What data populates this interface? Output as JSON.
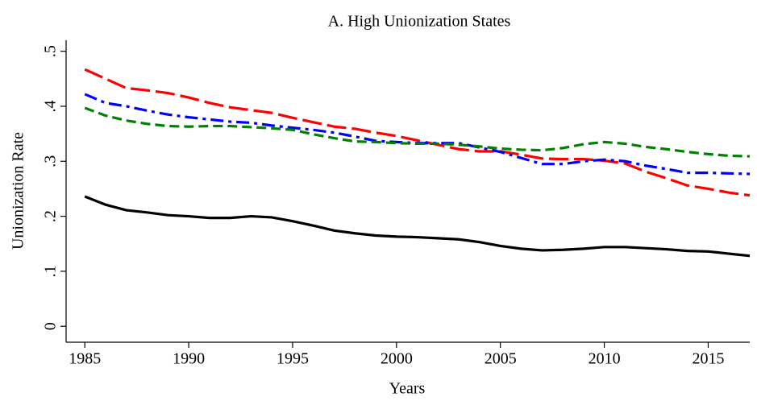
{
  "chart_data": {
    "type": "line",
    "title": "A. High Unionization States",
    "xlabel": "Years",
    "ylabel": "Unionization Rate",
    "x": [
      1985,
      1986,
      1987,
      1988,
      1989,
      1990,
      1991,
      1992,
      1993,
      1994,
      1995,
      1996,
      1997,
      1998,
      1999,
      2000,
      2001,
      2002,
      2003,
      2004,
      2005,
      2006,
      2007,
      2008,
      2009,
      2010,
      2011,
      2012,
      2013,
      2014,
      2015,
      2016,
      2017
    ],
    "series": [
      {
        "color": "#000000",
        "line_style": "solid",
        "values": [
          0.236,
          0.221,
          0.211,
          0.207,
          0.202,
          0.2,
          0.197,
          0.197,
          0.2,
          0.198,
          0.191,
          0.183,
          0.174,
          0.169,
          0.165,
          0.163,
          0.162,
          0.16,
          0.158,
          0.153,
          0.146,
          0.141,
          0.138,
          0.139,
          0.141,
          0.144,
          0.144,
          0.142,
          0.14,
          0.137,
          0.136,
          0.132,
          0.128
        ]
      },
      {
        "color": "#ff0000",
        "line_style": "longdash",
        "values": [
          0.467,
          0.45,
          0.433,
          0.429,
          0.424,
          0.416,
          0.406,
          0.398,
          0.393,
          0.388,
          0.379,
          0.371,
          0.363,
          0.359,
          0.352,
          0.346,
          0.338,
          0.33,
          0.322,
          0.318,
          0.318,
          0.312,
          0.305,
          0.304,
          0.304,
          0.301,
          0.296,
          0.281,
          0.269,
          0.256,
          0.25,
          0.243,
          0.238
        ]
      },
      {
        "color": "#0000ff",
        "line_style": "dashdot",
        "values": [
          0.422,
          0.406,
          0.4,
          0.392,
          0.385,
          0.38,
          0.376,
          0.372,
          0.37,
          0.365,
          0.361,
          0.357,
          0.352,
          0.345,
          0.337,
          0.335,
          0.333,
          0.333,
          0.333,
          0.325,
          0.317,
          0.306,
          0.295,
          0.295,
          0.3,
          0.303,
          0.3,
          0.292,
          0.286,
          0.279,
          0.279,
          0.278,
          0.277
        ]
      },
      {
        "color": "#008000",
        "line_style": "dash",
        "values": [
          0.397,
          0.383,
          0.374,
          0.368,
          0.364,
          0.363,
          0.364,
          0.364,
          0.362,
          0.36,
          0.357,
          0.349,
          0.342,
          0.336,
          0.335,
          0.333,
          0.332,
          0.332,
          0.33,
          0.327,
          0.323,
          0.321,
          0.32,
          0.324,
          0.331,
          0.335,
          0.332,
          0.326,
          0.322,
          0.317,
          0.313,
          0.31,
          0.309
        ]
      }
    ],
    "xlim": [
      1984.1,
      2017
    ],
    "xticks": [
      1985,
      1990,
      1995,
      2000,
      2005,
      2010,
      2015
    ],
    "ylim": [
      -0.029,
      0.52
    ],
    "yticks": [
      0,
      {
        "value": 0.1,
        "label": ".1"
      },
      {
        "value": 0.2,
        "label": ".2"
      },
      {
        "value": 0.3,
        "label": ".3"
      },
      {
        "value": 0.4,
        "label": ".4"
      },
      {
        "value": 0.5,
        "label": ".5"
      }
    ],
    "grid": false
  }
}
